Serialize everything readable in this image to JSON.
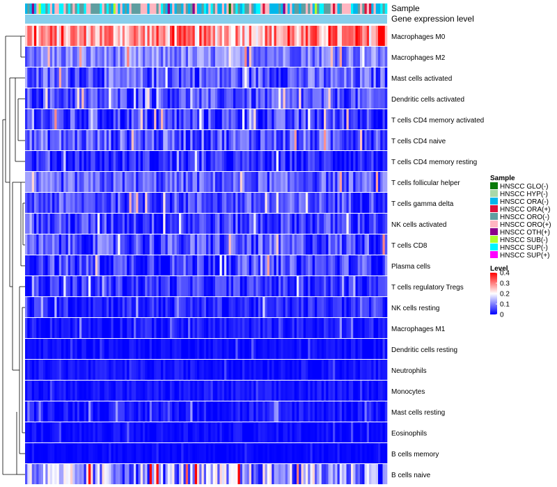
{
  "chart_data": {
    "type": "heatmap",
    "title": "",
    "annotation_tracks": [
      "Sample",
      "Gene expression level"
    ],
    "rows": [
      {
        "label": "Macrophages M0",
        "mean": 0.28,
        "spread": 0.1
      },
      {
        "label": "Macrophages M2",
        "mean": 0.1,
        "spread": 0.06
      },
      {
        "label": "Mast cells activated",
        "mean": 0.07,
        "spread": 0.07
      },
      {
        "label": "Dendritic cells activated",
        "mean": 0.06,
        "spread": 0.06
      },
      {
        "label": "T cells CD4 memory activated",
        "mean": 0.05,
        "spread": 0.07
      },
      {
        "label": "T cells CD4 naive",
        "mean": 0.07,
        "spread": 0.07
      },
      {
        "label": "T cells CD4 memory resting",
        "mean": 0.03,
        "spread": 0.05
      },
      {
        "label": "T cells follicular helper",
        "mean": 0.07,
        "spread": 0.06
      },
      {
        "label": "T cells gamma delta",
        "mean": 0.06,
        "spread": 0.06
      },
      {
        "label": "NK cells activated",
        "mean": 0.05,
        "spread": 0.06
      },
      {
        "label": "T cells CD8",
        "mean": 0.06,
        "spread": 0.07
      },
      {
        "label": "Plasma cells",
        "mean": 0.05,
        "spread": 0.07
      },
      {
        "label": "T cells regulatory  Tregs",
        "mean": 0.04,
        "spread": 0.05
      },
      {
        "label": "NK cells resting",
        "mean": 0.03,
        "spread": 0.04
      },
      {
        "label": "Macrophages M1",
        "mean": 0.02,
        "spread": 0.03
      },
      {
        "label": "Dendritic cells resting",
        "mean": 0.01,
        "spread": 0.02
      },
      {
        "label": "Neutrophils",
        "mean": 0.015,
        "spread": 0.02
      },
      {
        "label": "Monocytes",
        "mean": 0.015,
        "spread": 0.02
      },
      {
        "label": "Mast cells resting",
        "mean": 0.02,
        "spread": 0.03
      },
      {
        "label": "Eosinophils",
        "mean": 0.01,
        "spread": 0.02
      },
      {
        "label": "B cells memory",
        "mean": 0.005,
        "spread": 0.01
      },
      {
        "label": "B cells naive",
        "mean": 0.12,
        "spread": 0.12
      }
    ],
    "n_columns": 160,
    "legend_sample": {
      "title": "Sample",
      "entries": [
        {
          "label": "HNSCC GLO(-)",
          "color": "#0a7a0a"
        },
        {
          "label": "HNSCC HYP(-)",
          "color": "#a8d8a8"
        },
        {
          "label": "HNSCC ORA(-)",
          "color": "#00b7eb"
        },
        {
          "label": "HNSCC ORA(+)",
          "color": "#dc143c"
        },
        {
          "label": "HNSCC ORO(-)",
          "color": "#5f9ea0"
        },
        {
          "label": "HNSCC ORO(+)",
          "color": "#ffb6c1"
        },
        {
          "label": "HNSCC OTH(+)",
          "color": "#8b008b"
        },
        {
          "label": "HNSCC SUB(-)",
          "color": "#adff2f"
        },
        {
          "label": "HNSCC SUP(-)",
          "color": "#00f5ff"
        },
        {
          "label": "HNSCC SUP(+)",
          "color": "#ff00ff"
        }
      ]
    },
    "legend_level": {
      "title": "Level",
      "ticks": [
        "0.4",
        "0.3",
        "0.2",
        "0.1",
        "0"
      ],
      "range": [
        0,
        0.4
      ],
      "color_low": "#0000ff",
      "color_mid": "#ffffff",
      "color_high": "#ff0000"
    },
    "expression_track_color": "#87ceeb"
  }
}
